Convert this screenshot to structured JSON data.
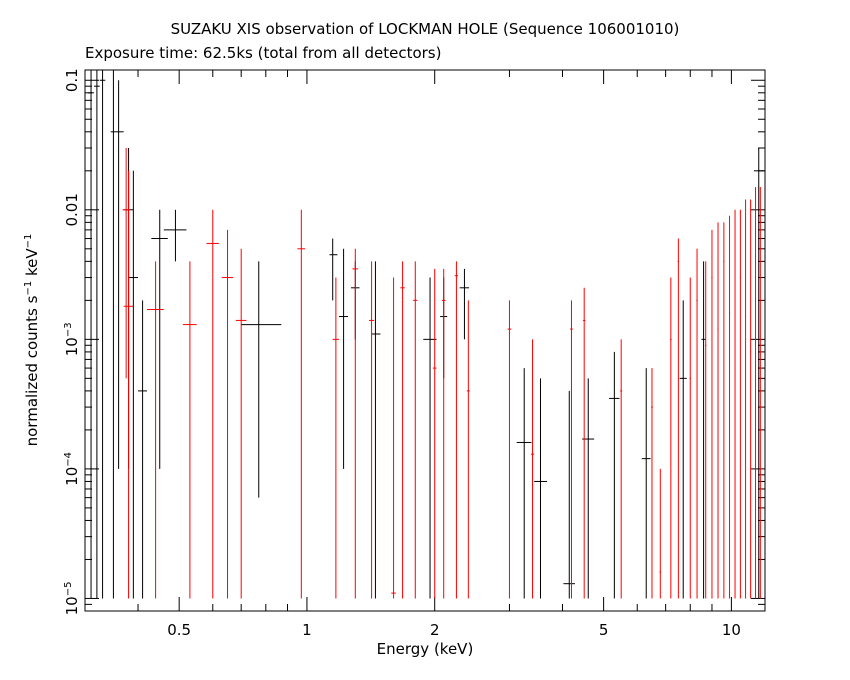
{
  "chart_data": {
    "type": "scatter",
    "title": "SUZAKU XIS observation of LOCKMAN HOLE (Sequence 106001010)",
    "subtitle": "Exposure time: 62.5ks (total from all detectors)",
    "xlabel": "Energy (keV)",
    "ylabel": {
      "prefix": "normalized counts s",
      "sup1": "−1",
      "mid": " keV",
      "sup2": "−1"
    },
    "xscale": "log",
    "yscale": "log",
    "xlim": [
      0.3,
      12
    ],
    "ylim": [
      8e-06,
      0.12
    ],
    "xticks": [
      {
        "value": 0.5,
        "label": "0.5"
      },
      {
        "value": 1,
        "label": "1"
      },
      {
        "value": 2,
        "label": "2"
      },
      {
        "value": 5,
        "label": "5"
      },
      {
        "value": 10,
        "label": "10"
      }
    ],
    "yticks": [
      {
        "value": 0.1,
        "label": "0.1",
        "sup": ""
      },
      {
        "value": 0.01,
        "label": "0.01",
        "sup": ""
      },
      {
        "value": 0.001,
        "label": "10",
        "sup": "−3"
      },
      {
        "value": 0.0001,
        "label": "10",
        "sup": "−4"
      },
      {
        "value": 1e-05,
        "label": "10",
        "sup": "−5"
      }
    ],
    "series": [
      {
        "color": "#000000",
        "points": [
          {
            "x": 0.31,
            "xerr": [
              0.305,
              0.315
            ],
            "y": 0.08,
            "yerr": [
              1e-05,
              0.12
            ]
          },
          {
            "x": 0.32,
            "xerr": [
              0.315,
              0.325
            ],
            "y": 0.09,
            "yerr": [
              1e-05,
              0.12
            ]
          },
          {
            "x": 0.33,
            "xerr": [
              0.325,
              0.335
            ],
            "y": 0.1,
            "yerr": [
              1e-05,
              0.12
            ]
          },
          {
            "x": 0.35,
            "xerr": [
              0.345,
              0.355
            ],
            "y": 0.04,
            "yerr": [
              1e-05,
              0.12
            ]
          },
          {
            "x": 0.36,
            "xerr": [
              0.355,
              0.37
            ],
            "y": 0.04,
            "yerr": [
              0.0001,
              0.1
            ]
          },
          {
            "x": 0.38,
            "xerr": [
              0.37,
              0.39
            ],
            "y": 0.01,
            "yerr": [
              0.0001,
              0.03
            ]
          },
          {
            "x": 0.39,
            "xerr": [
              0.38,
              0.4
            ],
            "y": 0.003,
            "yerr": [
              1e-05,
              0.02
            ]
          },
          {
            "x": 0.41,
            "xerr": [
              0.4,
              0.42
            ],
            "y": 0.0004,
            "yerr": [
              1e-05,
              0.002
            ]
          },
          {
            "x": 0.45,
            "xerr": [
              0.43,
              0.47
            ],
            "y": 0.006,
            "yerr": [
              0.0001,
              0.01
            ]
          },
          {
            "x": 0.49,
            "xerr": [
              0.46,
              0.52
            ],
            "y": 0.007,
            "yerr": [
              0.004,
              0.01
            ]
          },
          {
            "x": 0.77,
            "xerr": [
              0.7,
              0.87
            ],
            "y": 0.0013,
            "yerr": [
              6e-05,
              0.004
            ]
          },
          {
            "x": 1.15,
            "xerr": [
              1.13,
              1.18
            ],
            "y": 0.0045,
            "yerr": [
              0.002,
              0.006
            ]
          },
          {
            "x": 1.22,
            "xerr": [
              1.19,
              1.25
            ],
            "y": 0.0015,
            "yerr": [
              0.0001,
              0.005
            ]
          },
          {
            "x": 1.3,
            "xerr": [
              1.27,
              1.33
            ],
            "y": 0.0025,
            "yerr": [
              0.001,
              0.004
            ]
          },
          {
            "x": 1.45,
            "xerr": [
              1.42,
              1.49
            ],
            "y": 0.0011,
            "yerr": [
              1e-05,
              0.004
            ]
          },
          {
            "x": 1.95,
            "xerr": [
              1.88,
              2.02
            ],
            "y": 0.001,
            "yerr": [
              1e-05,
              0.003
            ]
          },
          {
            "x": 2.1,
            "xerr": [
              2.06,
              2.14
            ],
            "y": 0.0015,
            "yerr": [
              0.0005,
              0.003
            ]
          },
          {
            "x": 2.35,
            "xerr": [
              2.29,
              2.41
            ],
            "y": 0.0025,
            "yerr": [
              0.001,
              0.0035
            ]
          },
          {
            "x": 3.25,
            "xerr": [
              3.12,
              3.38
            ],
            "y": 0.00016,
            "yerr": [
              1e-05,
              0.0006
            ]
          },
          {
            "x": 3.55,
            "xerr": [
              3.43,
              3.68
            ],
            "y": 8e-05,
            "yerr": [
              1e-05,
              0.0005
            ]
          },
          {
            "x": 4.15,
            "xerr": [
              4.02,
              4.28
            ],
            "y": 1.3e-05,
            "yerr": [
              1e-05,
              0.0004
            ]
          },
          {
            "x": 4.6,
            "xerr": [
              4.45,
              4.75
            ],
            "y": 0.00017,
            "yerr": [
              1e-05,
              0.0005
            ]
          },
          {
            "x": 5.3,
            "xerr": [
              5.15,
              5.45
            ],
            "y": 0.00035,
            "yerr": [
              1e-05,
              0.0008
            ]
          },
          {
            "x": 6.3,
            "xerr": [
              6.15,
              6.45
            ],
            "y": 0.00012,
            "yerr": [
              1e-05,
              0.0006
            ]
          },
          {
            "x": 7.7,
            "xerr": [
              7.55,
              7.85
            ],
            "y": 0.0005,
            "yerr": [
              1e-05,
              0.002
            ]
          },
          {
            "x": 8.6,
            "xerr": [
              8.5,
              8.7
            ],
            "y": 0.001,
            "yerr": [
              1e-05,
              0.004
            ]
          },
          {
            "x": 11.6,
            "xerr": [
              11.3,
              12.0
            ],
            "y": 0.02,
            "yerr": [
              1e-05,
              0.03
            ]
          }
        ]
      },
      {
        "color": "#ff0000",
        "points": [
          {
            "x": 0.375,
            "xerr": [
              0.368,
              0.382
            ],
            "y": 0.01,
            "yerr": [
              0.0005,
              0.03
            ]
          },
          {
            "x": 0.38,
            "xerr": [
              0.37,
              0.39
            ],
            "y": 0.0018,
            "yerr": [
              1e-05,
              0.02
            ]
          },
          {
            "x": 0.44,
            "xerr": [
              0.42,
              0.46
            ],
            "y": 0.0017,
            "yerr": [
              1e-05,
              0.004
            ]
          },
          {
            "x": 0.53,
            "xerr": [
              0.51,
              0.55
            ],
            "y": 0.0013,
            "yerr": [
              1e-05,
              0.004
            ]
          },
          {
            "x": 0.6,
            "xerr": [
              0.58,
              0.62
            ],
            "y": 0.0055,
            "yerr": [
              1e-05,
              0.01
            ]
          },
          {
            "x": 0.65,
            "xerr": [
              0.63,
              0.67
            ],
            "y": 0.003,
            "yerr": [
              1e-05,
              0.007
            ]
          },
          {
            "x": 0.7,
            "xerr": [
              0.68,
              0.72
            ],
            "y": 0.0014,
            "yerr": [
              1e-05,
              0.005
            ]
          },
          {
            "x": 0.97,
            "xerr": [
              0.95,
              0.99
            ],
            "y": 0.005,
            "yerr": [
              1e-05,
              0.01
            ]
          },
          {
            "x": 1.17,
            "xerr": [
              1.15,
              1.19
            ],
            "y": 0.001,
            "yerr": [
              1e-05,
              0.003
            ]
          },
          {
            "x": 1.3,
            "xerr": [
              1.28,
              1.32
            ],
            "y": 0.0035,
            "yerr": [
              1e-05,
              0.005
            ]
          },
          {
            "x": 1.42,
            "xerr": [
              1.4,
              1.44
            ],
            "y": 0.0014,
            "yerr": [
              1e-05,
              0.004
            ]
          },
          {
            "x": 1.6,
            "xerr": [
              1.58,
              1.62
            ],
            "y": 1.1e-05,
            "yerr": [
              1e-05,
              0.003
            ]
          },
          {
            "x": 1.68,
            "xerr": [
              1.66,
              1.7
            ],
            "y": 0.0025,
            "yerr": [
              1e-05,
              0.004
            ]
          },
          {
            "x": 1.8,
            "xerr": [
              1.78,
              1.82
            ],
            "y": 0.002,
            "yerr": [
              1e-05,
              0.004
            ]
          },
          {
            "x": 2.0,
            "xerr": [
              1.98,
              2.02
            ],
            "y": 0.0006,
            "yerr": [
              1e-05,
              0.0035
            ]
          },
          {
            "x": 2.1,
            "xerr": [
              2.08,
              2.12
            ],
            "y": 0.002,
            "yerr": [
              1e-05,
              0.0035
            ]
          },
          {
            "x": 2.25,
            "xerr": [
              2.23,
              2.27
            ],
            "y": 0.0031,
            "yerr": [
              1e-05,
              0.004
            ]
          },
          {
            "x": 2.4,
            "xerr": [
              2.38,
              2.42
            ],
            "y": 0.0004,
            "yerr": [
              1e-05,
              0.002
            ]
          },
          {
            "x": 3.0,
            "xerr": [
              2.97,
              3.03
            ],
            "y": 0.0012,
            "yerr": [
              1e-05,
              0.002
            ]
          },
          {
            "x": 3.4,
            "xerr": [
              3.37,
              3.43
            ],
            "y": 0.00013,
            "yerr": [
              1e-05,
              0.001
            ]
          },
          {
            "x": 4.2,
            "xerr": [
              4.17,
              4.23
            ],
            "y": 0.0012,
            "yerr": [
              1e-05,
              0.002
            ]
          },
          {
            "x": 4.5,
            "xerr": [
              4.47,
              4.53
            ],
            "y": 0.0014,
            "yerr": [
              1e-05,
              0.0025
            ]
          },
          {
            "x": 5.5,
            "xerr": [
              5.47,
              5.53
            ],
            "y": 0.0004,
            "yerr": [
              1e-05,
              0.001
            ]
          },
          {
            "x": 6.5,
            "xerr": [
              6.47,
              6.53
            ],
            "y": 0.0003,
            "yerr": [
              1e-05,
              0.0006
            ]
          },
          {
            "x": 6.8,
            "xerr": [
              6.77,
              6.83
            ],
            "y": 1.6e-05,
            "yerr": [
              1e-05,
              0.0001
            ]
          },
          {
            "x": 7.2,
            "xerr": [
              7.17,
              7.23
            ],
            "y": 0.001,
            "yerr": [
              1e-05,
              0.003
            ]
          },
          {
            "x": 7.5,
            "xerr": [
              7.47,
              7.53
            ],
            "y": 0.004,
            "yerr": [
              1e-05,
              0.006
            ]
          },
          {
            "x": 8.0,
            "xerr": [
              7.97,
              8.03
            ],
            "y": 0.0005,
            "yerr": [
              1e-05,
              0.003
            ]
          },
          {
            "x": 8.3,
            "xerr": [
              8.27,
              8.33
            ],
            "y": 0.002,
            "yerr": [
              1e-05,
              0.005
            ]
          },
          {
            "x": 8.7,
            "xerr": [
              8.67,
              8.73
            ],
            "y": 0.0009,
            "yerr": [
              1e-05,
              0.004
            ]
          },
          {
            "x": 9.0,
            "xerr": [
              8.97,
              9.03
            ],
            "y": 0.003,
            "yerr": [
              1e-05,
              0.007
            ]
          },
          {
            "x": 9.3,
            "xerr": [
              9.27,
              9.33
            ],
            "y": 0.0012,
            "yerr": [
              1e-05,
              0.008
            ]
          },
          {
            "x": 9.6,
            "xerr": [
              9.57,
              9.63
            ],
            "y": 0.004,
            "yerr": [
              1e-05,
              0.008
            ]
          },
          {
            "x": 9.9,
            "xerr": [
              9.87,
              9.93
            ],
            "y": 0.0016,
            "yerr": [
              1e-05,
              0.009
            ]
          },
          {
            "x": 10.2,
            "xerr": [
              10.17,
              10.23
            ],
            "y": 0.0006,
            "yerr": [
              1e-05,
              0.01
            ]
          },
          {
            "x": 10.5,
            "xerr": [
              10.47,
              10.53
            ],
            "y": 0.003,
            "yerr": [
              1e-05,
              0.01
            ]
          },
          {
            "x": 10.8,
            "xerr": [
              10.77,
              10.83
            ],
            "y": 0.0015,
            "yerr": [
              1e-05,
              0.012
            ]
          },
          {
            "x": 11.1,
            "xerr": [
              11.07,
              11.13
            ],
            "y": 0.0008,
            "yerr": [
              1e-05,
              0.012
            ]
          },
          {
            "x": 11.4,
            "xerr": [
              11.37,
              11.43
            ],
            "y": 0.0025,
            "yerr": [
              1e-05,
              0.015
            ]
          },
          {
            "x": 11.7,
            "xerr": [
              11.67,
              11.73
            ],
            "y": 0.01,
            "yerr": [
              1e-05,
              0.015
            ]
          }
        ]
      }
    ],
    "grid": false,
    "legend": "none"
  }
}
